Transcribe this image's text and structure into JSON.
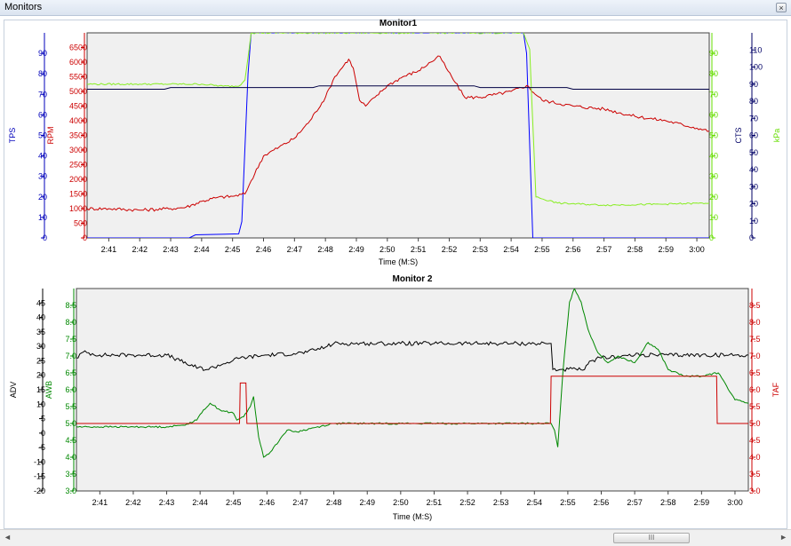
{
  "window": {
    "title": "Monitors",
    "close_label": "×"
  },
  "scrollbar": {
    "left_arrow": "◄",
    "right_arrow": "►",
    "thumb_grip": "III"
  },
  "chart_data": [
    {
      "type": "line",
      "title": "Monitor1",
      "xlabel": "Time (M:S)",
      "xlim": [
        160.3,
        180.4
      ],
      "x_ticks": [
        161,
        162,
        163,
        164,
        165,
        166,
        167,
        168,
        169,
        170,
        171,
        172,
        173,
        174,
        175,
        176,
        177,
        178,
        179,
        180
      ],
      "x_tick_labels": [
        "2:41",
        "2:42",
        "2:43",
        "2:44",
        "2:45",
        "2:46",
        "2:47",
        "2:48",
        "2:49",
        "2:50",
        "2:51",
        "2:52",
        "2:53",
        "2:54",
        "2:55",
        "2:56",
        "2:57",
        "2:58",
        "2:59",
        "3:00"
      ],
      "axes": [
        {
          "id": "TPS",
          "label": "TPS",
          "side": "left",
          "order": 0,
          "color": "#0000bb",
          "lim": [
            0,
            100
          ],
          "ticks": [
            0,
            10,
            20,
            30,
            40,
            50,
            60,
            70,
            80,
            90
          ]
        },
        {
          "id": "RPM",
          "label": "RPM",
          "side": "left",
          "order": 1,
          "color": "#cc0000",
          "lim": [
            0,
            7000
          ],
          "ticks": [
            0,
            500,
            1000,
            1500,
            2000,
            2500,
            3000,
            3500,
            4000,
            4500,
            5000,
            5500,
            6000,
            6500
          ]
        },
        {
          "id": "kPa",
          "label": "kPa",
          "side": "right",
          "order": 0,
          "color": "#66dd00",
          "lim": [
            0,
            100
          ],
          "ticks": [
            0,
            10,
            20,
            30,
            40,
            50,
            60,
            70,
            80,
            90
          ]
        },
        {
          "id": "CTS",
          "label": "CTS",
          "side": "right",
          "order": 1,
          "color": "#000066",
          "lim": [
            0,
            120
          ],
          "ticks": [
            0,
            10,
            20,
            30,
            40,
            50,
            60,
            70,
            80,
            90,
            100,
            110
          ]
        }
      ],
      "series": [
        {
          "name": "TPS",
          "axis": "TPS",
          "color": "#0000ff",
          "noise": 0,
          "x": [
            160.3,
            163.6,
            163.8,
            165.2,
            165.3,
            165.5,
            165.6,
            174.4,
            174.5,
            174.7,
            180.4
          ],
          "y": [
            0,
            0,
            1.5,
            2,
            8,
            80,
            100,
            100,
            90,
            0,
            0
          ]
        },
        {
          "name": "RPM",
          "axis": "RPM",
          "color": "#cc0000",
          "noise": 55,
          "x": [
            160.3,
            161,
            162,
            163,
            163.5,
            164,
            164.5,
            165,
            165.4,
            165.6,
            166,
            166.5,
            167,
            167.5,
            168,
            168.3,
            168.6,
            168.75,
            168.9,
            169.1,
            169.3,
            169.6,
            170,
            170.5,
            171,
            171.4,
            171.7,
            171.9,
            172.2,
            172.5,
            173,
            173.5,
            174,
            174.5,
            175,
            176,
            177,
            178,
            179,
            180,
            180.4
          ],
          "y": [
            1000,
            1000,
            950,
            1000,
            1050,
            1250,
            1380,
            1420,
            1500,
            1950,
            2800,
            3100,
            3400,
            4000,
            4800,
            5500,
            5900,
            6100,
            5800,
            4700,
            4500,
            4800,
            5200,
            5500,
            5700,
            6000,
            6200,
            5800,
            5300,
            4800,
            4800,
            4900,
            5000,
            5200,
            4700,
            4500,
            4400,
            4150,
            4000,
            3750,
            3650
          ]
        },
        {
          "name": "kPa",
          "axis": "kPa",
          "color": "#88ee22",
          "noise": 0.4,
          "x": [
            160.3,
            162,
            163,
            164,
            164.7,
            165.2,
            165.4,
            165.6,
            174.4,
            174.6,
            174.8,
            175.5,
            177,
            179,
            180.4
          ],
          "y": [
            75,
            75,
            75,
            75,
            74,
            74,
            77,
            100,
            100,
            92,
            20,
            17,
            16,
            16.5,
            17
          ]
        },
        {
          "name": "CTS",
          "axis": "CTS",
          "color": "#000044",
          "noise": 0,
          "x": [
            160.3,
            162.8,
            163,
            167.6,
            167.8,
            172.8,
            173,
            175.8,
            176,
            180.4
          ],
          "y": [
            87,
            87,
            88,
            88,
            89,
            89,
            88,
            88,
            87,
            87
          ]
        }
      ]
    },
    {
      "type": "line",
      "title": "Monitor 2",
      "xlabel": "Time (M:S)",
      "xlim": [
        160.3,
        180.4
      ],
      "x_ticks": [
        161,
        162,
        163,
        164,
        165,
        166,
        167,
        168,
        169,
        170,
        171,
        172,
        173,
        174,
        175,
        176,
        177,
        178,
        179,
        180
      ],
      "x_tick_labels": [
        "2:41",
        "2:42",
        "2:43",
        "2:44",
        "2:45",
        "2:46",
        "2:47",
        "2:48",
        "2:49",
        "2:50",
        "2:51",
        "2:52",
        "2:53",
        "2:54",
        "2:55",
        "2:56",
        "2:57",
        "2:58",
        "2:59",
        "3:00"
      ],
      "axes": [
        {
          "id": "ADV",
          "label": "ADV",
          "side": "left",
          "order": 0,
          "color": "#000000",
          "lim": [
            -20,
            50
          ],
          "ticks": [
            -20,
            -15,
            -10,
            -5,
            0,
            5,
            10,
            15,
            20,
            25,
            30,
            35,
            40,
            45
          ]
        },
        {
          "id": "AWB",
          "label": "AWB",
          "side": "left",
          "order": 1,
          "color": "#008800",
          "lim": [
            3.0,
            9.0
          ],
          "ticks": [
            3.0,
            3.5,
            4.0,
            4.5,
            5.0,
            5.5,
            6.0,
            6.5,
            7.0,
            7.5,
            8.0,
            8.5
          ],
          "decimals": 1
        },
        {
          "id": "TAF",
          "label": "TAF",
          "side": "right",
          "order": 0,
          "color": "#cc0000",
          "lim": [
            3.0,
            9.0
          ],
          "ticks": [
            3.0,
            3.5,
            4.0,
            4.5,
            5.0,
            5.5,
            6.0,
            6.5,
            7.0,
            7.5,
            8.0,
            8.5
          ],
          "decimals": 1
        }
      ],
      "series": [
        {
          "name": "ADV",
          "axis": "ADV",
          "color": "#000000",
          "noise": 0.7,
          "x": [
            160.3,
            160.5,
            161,
            162,
            163,
            163.4,
            163.8,
            164.2,
            164.7,
            165.2,
            166,
            166.8,
            167.2,
            167.8,
            168,
            169,
            170,
            171,
            172,
            173,
            174,
            174.5,
            174.55,
            175.5,
            175.7,
            176,
            177,
            178,
            179,
            180,
            180.4
          ],
          "y": [
            26,
            28,
            27,
            27,
            27,
            25,
            23,
            22,
            24,
            26,
            27,
            27.5,
            28,
            30,
            31,
            31,
            31,
            31,
            31,
            31,
            31,
            31,
            22,
            22,
            25,
            26,
            27,
            27,
            27,
            27,
            27
          ]
        },
        {
          "name": "AWB",
          "axis": "AWB",
          "color": "#008800",
          "noise": 0.025,
          "x": [
            160.3,
            162,
            163,
            163.5,
            163.9,
            164.1,
            164.3,
            164.6,
            165,
            165.1,
            165.3,
            165.5,
            165.6,
            165.75,
            165.9,
            166.1,
            166.4,
            166.6,
            166.9,
            167.3,
            168,
            169,
            170,
            171,
            172,
            173,
            174,
            174.5,
            174.6,
            174.7,
            174.85,
            175.05,
            175.2,
            175.4,
            175.6,
            175.9,
            176.2,
            176.5,
            177,
            177.4,
            177.7,
            178,
            178.5,
            179,
            179.2,
            179.5,
            179.7,
            180,
            180.4
          ],
          "y": [
            4.9,
            4.9,
            4.9,
            4.95,
            5.1,
            5.4,
            5.6,
            5.4,
            5.3,
            5.1,
            5.2,
            5.5,
            5.8,
            4.6,
            4.0,
            4.15,
            4.55,
            4.8,
            4.75,
            4.85,
            5.0,
            5.0,
            5.0,
            5.0,
            5.0,
            5.0,
            5.0,
            5.0,
            4.8,
            4.3,
            6.5,
            8.6,
            9.0,
            8.6,
            7.8,
            7.1,
            6.8,
            7.0,
            6.8,
            7.4,
            7.2,
            6.6,
            6.4,
            6.4,
            6.45,
            6.5,
            6.2,
            5.7,
            5.6
          ]
        },
        {
          "name": "TAF",
          "axis": "TAF",
          "color": "#cc0000",
          "noise": 0,
          "x": [
            160.3,
            165.18,
            165.2,
            165.37,
            165.4,
            165.55,
            165.57,
            174.48,
            174.5,
            179.45,
            179.47,
            180.4
          ],
          "y": [
            5.0,
            5.0,
            6.2,
            6.2,
            5.0,
            5.0,
            5.0,
            5.0,
            6.4,
            6.4,
            5.0,
            5.0
          ]
        }
      ]
    }
  ]
}
